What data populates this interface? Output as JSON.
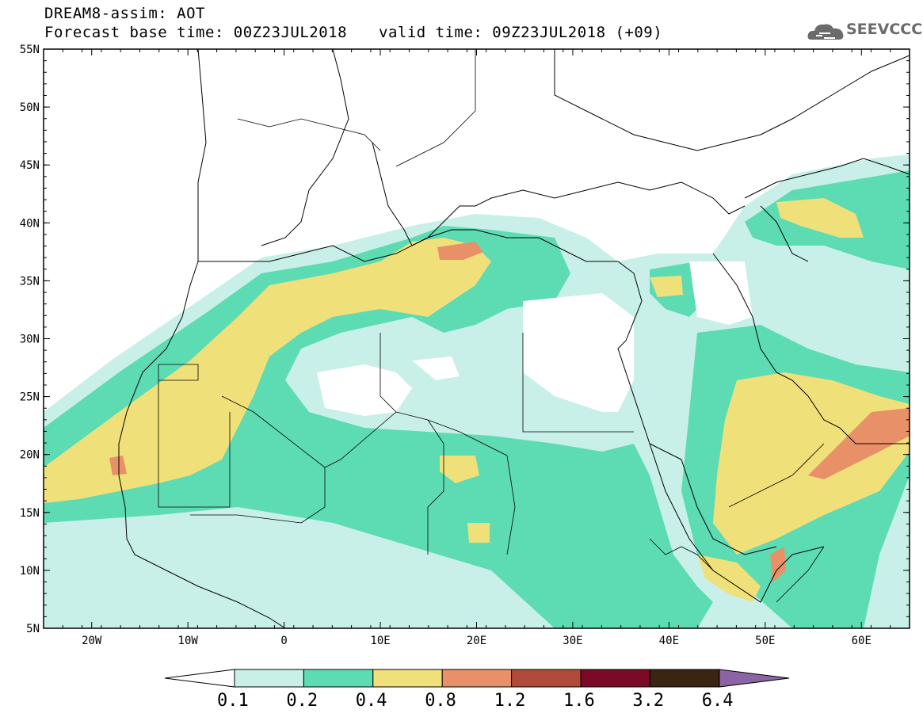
{
  "header": {
    "title": "DREAM8-assim: AOT",
    "base_time": "Forecast base time: 00Z23JUL2018",
    "valid_time": "valid time: 09Z23JUL2018 (+09)"
  },
  "logo": {
    "text": "SEEVCCC",
    "icon": "cloud-icon"
  },
  "map": {
    "lon_range": [
      -25,
      65
    ],
    "lat_range": [
      5,
      55
    ],
    "lat_labels": [
      "55N",
      "50N",
      "45N",
      "40N",
      "35N",
      "30N",
      "25N",
      "20N",
      "15N",
      "10N",
      "5N"
    ],
    "lon_labels": [
      "20W",
      "10W",
      "0",
      "10E",
      "20E",
      "30E",
      "40E",
      "50E",
      "60E"
    ]
  },
  "colorbar": {
    "levels": [
      "0.1",
      "0.2",
      "0.4",
      "0.8",
      "1.2",
      "1.6",
      "3.2",
      "6.4"
    ],
    "colors": [
      "#c8f0e8",
      "#5ddcb4",
      "#f0e07a",
      "#e89068",
      "#b04a3a",
      "#7a0a26",
      "#3a2412",
      "#8a64a4"
    ]
  }
}
